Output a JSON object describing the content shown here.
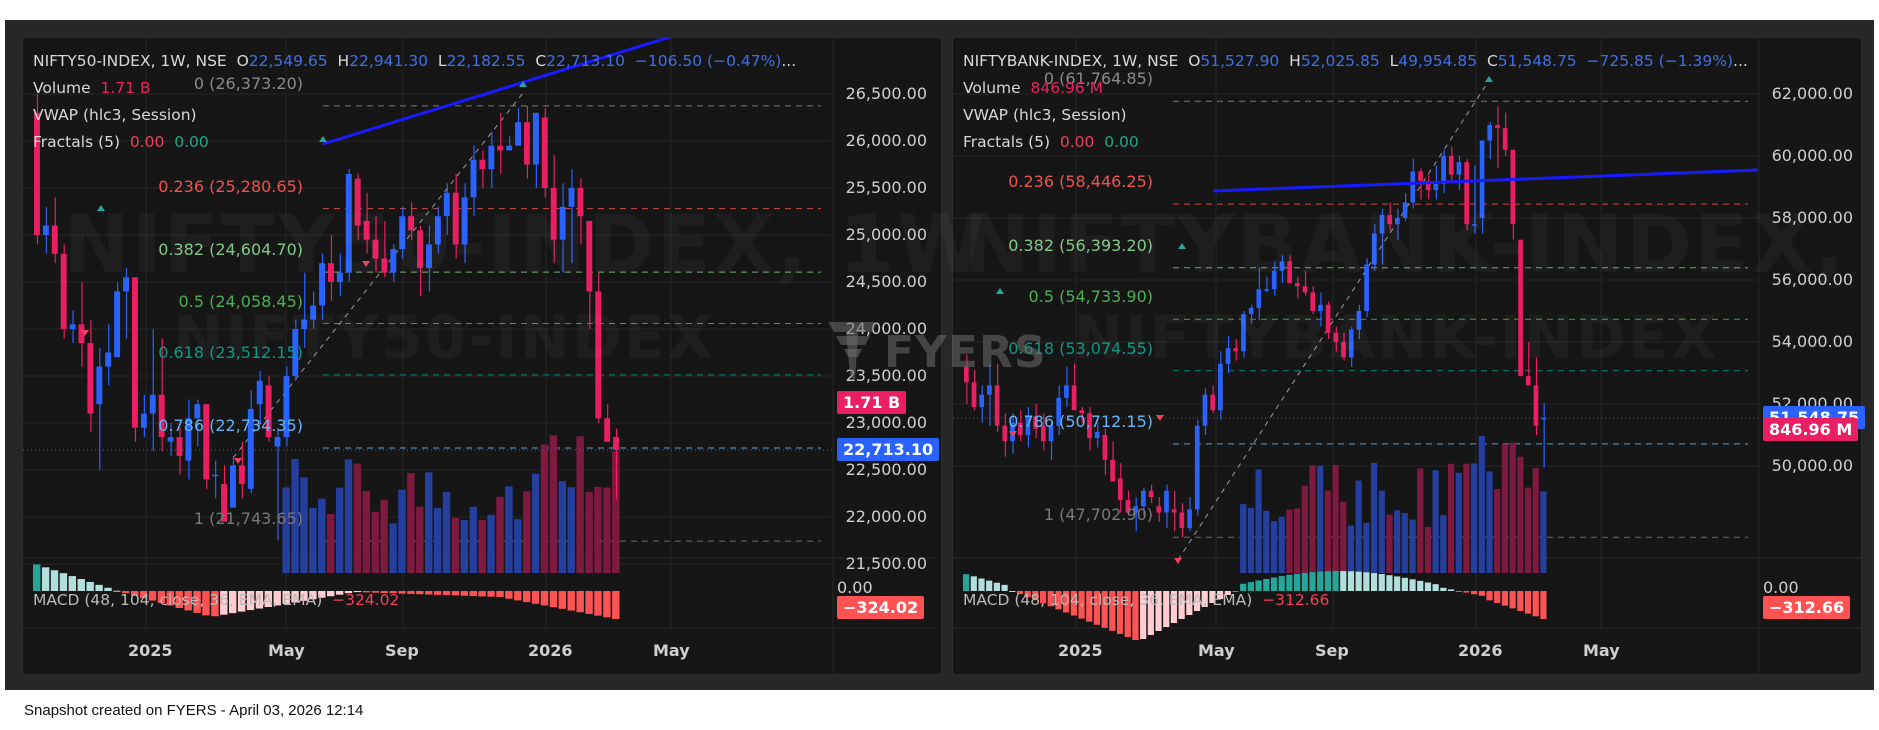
{
  "caption": "Snapshot created on FYERS - April 03, 2026 12:14",
  "watermark_logo": "FYERS",
  "colors": {
    "up": "#2962ff",
    "down": "#e91e63",
    "vol_up": "#243f9e",
    "vol_down": "#7e1940",
    "trend_line": "#1a1aff",
    "macd_pos_strong": "#26a69a",
    "macd_pos_weak": "#b2dfdb",
    "macd_neg_strong": "#ff5252",
    "macd_neg_weak": "#ffcdd2",
    "badge_price": "#2962ff",
    "badge_volume": "#e91e63",
    "badge_macd": "#ff5252"
  },
  "charts": [
    {
      "symbol": "NIFTY50-INDEX, 1W, NSE",
      "ohlc": {
        "o_label": "O",
        "o": "22,549.65",
        "h_label": "H",
        "h": "22,941.30",
        "l_label": "L",
        "l": "22,182.55",
        "c_label": "C",
        "c": "22,713.10",
        "change": "−106.50 (−0.47%)",
        "ellipsis": "..."
      },
      "volume_label": "Volume",
      "volume_value": "1.71 B",
      "vwap_label": "VWAP (hlc3, Session)",
      "fractals_label": "Fractals (5)",
      "fractals_v1": "0.00",
      "fractals_v2": "0.00",
      "macd_label": "MACD (48, 104, close, 36, EMA, EMA)",
      "macd_value": "−324.02",
      "watermark": "NIFTY50-INDEX, 1W",
      "watermark2": "NIFTY50-INDEX",
      "price_badge": "22,713.10",
      "volume_badge": "1.71 B",
      "macd_badge": "−324.02",
      "macd_zero": "0.00",
      "price_axis": [
        "26,500.00",
        "26,000.00",
        "25,500.00",
        "25,000.00",
        "24,500.00",
        "24,000.00",
        "23,500.00",
        "23,000.00",
        "22,500.00",
        "22,000.00",
        "21,500.00"
      ],
      "time_axis": [
        "2025",
        "May",
        "Sep",
        "2026",
        "May"
      ],
      "fib_levels": [
        {
          "label": "0 (26,373.20)",
          "ratio": "0",
          "price": 26373.2,
          "color": "#8a8a8a"
        },
        {
          "label": "0.236 (25,280.65)",
          "ratio": "0.236",
          "price": 25280.65,
          "color": "#f0524f"
        },
        {
          "label": "0.382 (24,604.70)",
          "ratio": "0.382",
          "price": 24604.7,
          "color": "#81c784"
        },
        {
          "label": "0.5 (24,058.45)",
          "ratio": "0.5",
          "price": 24058.45,
          "color": "#4caf50"
        },
        {
          "label": "0.618 (23,512.15)",
          "ratio": "0.618",
          "price": 23512.15,
          "color": "#089981"
        },
        {
          "label": "0.786 (22,734.35)",
          "ratio": "0.786",
          "price": 22734.35,
          "color": "#64b5f6"
        },
        {
          "label": "1 (21,743.65)",
          "ratio": "1",
          "price": 21743.65,
          "color": "#787878"
        }
      ]
    },
    {
      "symbol": "NIFTYBANK-INDEX, 1W, NSE",
      "ohlc": {
        "o_label": "O",
        "o": "51,527.90",
        "h_label": "H",
        "h": "52,025.85",
        "l_label": "L",
        "l": "49,954.85",
        "c_label": "C",
        "c": "51,548.75",
        "change": "−725.85 (−1.39%)",
        "ellipsis": "..."
      },
      "volume_label": "Volume",
      "volume_value": "846.96 M",
      "vwap_label": "VWAP (hlc3, Session)",
      "fractals_label": "Fractals (5)",
      "fractals_v1": "0.00",
      "fractals_v2": "0.00",
      "macd_label": "MACD (48, 104, close, 36, EMA, EMA)",
      "macd_value": "−312.66",
      "watermark": "NIFTYBANK-INDEX, 1W",
      "watermark2": "NIFTYBANK-INDEX",
      "price_badge": "51,548.75",
      "volume_badge": "846.96 M",
      "macd_badge": "−312.66",
      "macd_zero": "0.00",
      "price_axis": [
        "62,000.00",
        "60,000.00",
        "58,000.00",
        "56,000.00",
        "54,000.00",
        "52,000.00",
        "50,000.00"
      ],
      "time_axis": [
        "2025",
        "May",
        "Sep",
        "2026",
        "May"
      ],
      "fib_levels": [
        {
          "label": "0 (61,764.85)",
          "ratio": "0",
          "price": 61764.85,
          "color": "#8a8a8a"
        },
        {
          "label": "0.236 (58,446.25)",
          "ratio": "0.236",
          "price": 58446.25,
          "color": "#f0524f"
        },
        {
          "label": "0.382 (56,393.20)",
          "ratio": "0.382",
          "price": 56393.2,
          "color": "#81c784"
        },
        {
          "label": "0.5 (54,733.90)",
          "ratio": "0.5",
          "price": 54733.9,
          "color": "#4caf50"
        },
        {
          "label": "0.618 (53,074.55)",
          "ratio": "0.618",
          "price": 53074.55,
          "color": "#089981"
        },
        {
          "label": "0.786 (50,712.15)",
          "ratio": "0.786",
          "price": 50712.15,
          "color": "#64b5f6"
        },
        {
          "label": "1 (47,702.90)",
          "ratio": "1",
          "price": 47702.9,
          "color": "#787878"
        }
      ]
    }
  ],
  "chart_data": [
    {
      "type": "candlestick",
      "title": "NIFTY50-INDEX, 1W, NSE",
      "xlabel": "",
      "ylabel": "",
      "x_ticks": [
        "2025",
        "May",
        "Sep",
        "2026",
        "May"
      ],
      "ylim": [
        21300,
        26700
      ],
      "grid": true,
      "last": {
        "open": 22549.65,
        "high": 22941.3,
        "low": 22182.55,
        "close": 22713.1,
        "change": -106.5,
        "change_pct": -0.47
      },
      "fibonacci": [
        [
          0,
          26373.2
        ],
        [
          0.236,
          25280.65
        ],
        [
          0.382,
          24604.7
        ],
        [
          0.5,
          24058.45
        ],
        [
          0.618,
          23512.15
        ],
        [
          0.786,
          22734.35
        ],
        [
          1,
          21743.65
        ]
      ],
      "candles": [
        [
          26300,
          26500,
          24900,
          25000
        ],
        [
          25000,
          25300,
          24800,
          25100
        ],
        [
          25100,
          25400,
          24700,
          24800
        ],
        [
          24800,
          24900,
          23900,
          24000
        ],
        [
          24000,
          24200,
          23850,
          24050
        ],
        [
          24050,
          24500,
          23600,
          23850
        ],
        [
          23850,
          24100,
          22900,
          23100
        ],
        [
          23200,
          23800,
          22500,
          23600
        ],
        [
          23600,
          24050,
          23400,
          23750
        ],
        [
          23700,
          24500,
          23800,
          24400
        ],
        [
          24400,
          24650,
          23900,
          24550
        ],
        [
          24550,
          24500,
          22800,
          22950
        ],
        [
          22950,
          23300,
          22850,
          23100
        ],
        [
          23100,
          24000,
          22700,
          23300
        ],
        [
          23300,
          23900,
          22700,
          22850
        ],
        [
          22800,
          23000,
          22650,
          22850
        ],
        [
          22850,
          22950,
          22450,
          22650
        ],
        [
          22600,
          23250,
          22400,
          23050
        ],
        [
          23050,
          23250,
          22750,
          23200
        ],
        [
          23200,
          23200,
          22300,
          22400
        ],
        [
          22450,
          22600,
          22200,
          22450
        ],
        [
          22350,
          22550,
          21950,
          21950
        ],
        [
          22100,
          22650,
          22100,
          22550
        ],
        [
          22550,
          22800,
          22200,
          22350
        ],
        [
          22300,
          23350,
          22250,
          23150
        ],
        [
          23200,
          23550,
          23000,
          23450
        ],
        [
          23400,
          23500,
          22800,
          22850
        ],
        [
          22750,
          22950,
          21750,
          22850
        ],
        [
          22850,
          23600,
          22750,
          23500
        ],
        [
          23500,
          24100,
          23450,
          24000
        ],
        [
          24000,
          24600,
          23800,
          24100
        ],
        [
          24100,
          24400,
          24000,
          24250
        ],
        [
          24250,
          24800,
          24100,
          24700
        ],
        [
          24700,
          25000,
          24300,
          24500
        ],
        [
          24500,
          24800,
          24350,
          24600
        ],
        [
          24600,
          25700,
          24500,
          25650
        ],
        [
          25600,
          25650,
          24950,
          25100
        ],
        [
          25150,
          25450,
          24800,
          24950
        ],
        [
          24950,
          25200,
          24600,
          24750
        ],
        [
          24750,
          25150,
          24550,
          24600
        ],
        [
          24600,
          24900,
          24500,
          24850
        ],
        [
          24850,
          25300,
          24750,
          25200
        ],
        [
          25200,
          25350,
          24950,
          25050
        ],
        [
          25050,
          25100,
          24350,
          24650
        ],
        [
          24650,
          25100,
          24400,
          24900
        ],
        [
          24900,
          25300,
          24800,
          25200
        ],
        [
          25200,
          25550,
          25000,
          25450
        ],
        [
          25450,
          25650,
          24750,
          24900
        ],
        [
          24900,
          25550,
          24700,
          25400
        ],
        [
          25400,
          25950,
          25200,
          25800
        ],
        [
          25800,
          25900,
          25500,
          25700
        ],
        [
          25700,
          26100,
          25500,
          25950
        ],
        [
          25950,
          26300,
          25650,
          25900
        ],
        [
          25900,
          26050,
          25900,
          25950
        ],
        [
          25950,
          26350,
          26150,
          26200
        ],
        [
          26200,
          26373,
          25600,
          25750
        ],
        [
          25750,
          26300,
          25500,
          26300
        ],
        [
          26250,
          26350,
          25400,
          25500
        ],
        [
          25500,
          25850,
          24700,
          24950
        ],
        [
          24950,
          25550,
          24600,
          25300
        ],
        [
          25300,
          25700,
          24700,
          25500
        ],
        [
          25500,
          25600,
          24900,
          25200
        ],
        [
          25150,
          24900,
          24000,
          24400
        ],
        [
          24400,
          24600,
          23000,
          23050
        ],
        [
          23050,
          23200,
          22800,
          22800
        ],
        [
          22850,
          22941,
          22182,
          22713
        ]
      ],
      "volume_bars": "approx. 38 weekly bars, 0.9–1.8 B range, last 1.71 B",
      "macd_histogram_last": -324.02
    },
    {
      "type": "candlestick",
      "title": "NIFTYBANK-INDEX, 1W, NSE",
      "xlabel": "",
      "ylabel": "",
      "x_ticks": [
        "2025",
        "May",
        "Sep",
        "2026",
        "May"
      ],
      "ylim": [
        47000,
        62600
      ],
      "grid": true,
      "last": {
        "open": 51527.9,
        "high": 52025.85,
        "low": 49954.85,
        "close": 51548.75,
        "change": -725.85,
        "change_pct": -1.39
      },
      "fibonacci": [
        [
          0,
          61764.85
        ],
        [
          0.236,
          58446.25
        ],
        [
          0.382,
          56393.2
        ],
        [
          0.5,
          54733.9
        ],
        [
          0.618,
          53074.55
        ],
        [
          0.786,
          50712.15
        ],
        [
          1,
          47702.9
        ]
      ],
      "candles": [
        [
          53200,
          53600,
          52000,
          52700
        ],
        [
          52700,
          53100,
          51800,
          51900
        ],
        [
          51900,
          52600,
          51400,
          52300
        ],
        [
          52300,
          53300,
          51300,
          52600
        ],
        [
          52600,
          53300,
          51100,
          51300
        ],
        [
          51300,
          51700,
          50300,
          50800
        ],
        [
          50800,
          51700,
          50400,
          51400
        ],
        [
          51400,
          51800,
          50800,
          51000
        ],
        [
          51000,
          51900,
          50600,
          51600
        ],
        [
          51600,
          52000,
          50900,
          51200
        ],
        [
          51300,
          51700,
          50500,
          50800
        ],
        [
          50800,
          51500,
          50200,
          51300
        ],
        [
          51300,
          52600,
          51000,
          52200
        ],
        [
          52200,
          53200,
          51900,
          52600
        ],
        [
          52600,
          53300,
          51800,
          51800
        ],
        [
          51800,
          51900,
          51400,
          51700
        ],
        [
          51700,
          51900,
          50500,
          50900
        ],
        [
          50900,
          51400,
          50600,
          51100
        ],
        [
          51000,
          51200,
          49700,
          50200
        ],
        [
          50200,
          50800,
          49500,
          49500
        ],
        [
          49600,
          50100,
          48500,
          48900
        ],
        [
          48900,
          49200,
          48400,
          48500
        ],
        [
          48500,
          49000,
          47900,
          48700
        ],
        [
          48700,
          49300,
          48400,
          49200
        ],
        [
          49200,
          49400,
          48800,
          49000
        ],
        [
          48700,
          49000,
          48200,
          48500
        ],
        [
          48500,
          49400,
          48000,
          49200
        ],
        [
          48600,
          49200,
          47900,
          48500
        ],
        [
          48500,
          48800,
          47702,
          48000
        ],
        [
          48000,
          49000,
          47900,
          48600
        ],
        [
          48600,
          51500,
          48400,
          51300
        ],
        [
          51300,
          52500,
          51000,
          52300
        ],
        [
          52300,
          52600,
          51700,
          51800
        ],
        [
          51800,
          53700,
          51500,
          53300
        ],
        [
          53300,
          54200,
          53000,
          53800
        ],
        [
          53800,
          54100,
          53400,
          53700
        ],
        [
          53700,
          55000,
          53500,
          54900
        ],
        [
          54900,
          55200,
          54600,
          55100
        ],
        [
          55100,
          56400,
          54700,
          55700
        ],
        [
          55700,
          56100,
          55600,
          55700
        ],
        [
          55700,
          56600,
          55500,
          56300
        ],
        [
          56300,
          56800,
          55900,
          56600
        ],
        [
          56600,
          56800,
          55900,
          55900
        ],
        [
          55900,
          56100,
          55400,
          55800
        ],
        [
          55800,
          56300,
          55500,
          55600
        ],
        [
          55600,
          55800,
          54900,
          55000
        ],
        [
          55000,
          55600,
          54500,
          55200
        ],
        [
          55200,
          55300,
          54100,
          54300
        ],
        [
          54300,
          54500,
          53700,
          54000
        ],
        [
          54000,
          54300,
          53400,
          53500
        ],
        [
          53500,
          54500,
          53200,
          54400
        ],
        [
          54400,
          55200,
          54100,
          55000
        ],
        [
          55000,
          56700,
          54800,
          56500
        ],
        [
          56500,
          57800,
          56300,
          57500
        ],
        [
          57500,
          58300,
          56500,
          58100
        ],
        [
          58100,
          58500,
          57600,
          57800
        ],
        [
          57800,
          58300,
          57300,
          58000
        ],
        [
          58000,
          58800,
          57900,
          58500
        ],
        [
          58500,
          59900,
          58300,
          59500
        ],
        [
          59500,
          59600,
          58600,
          59200
        ],
        [
          59200,
          59400,
          58600,
          58900
        ],
        [
          58900,
          59700,
          58600,
          59100
        ],
        [
          59100,
          60200,
          58800,
          60000
        ],
        [
          60000,
          60300,
          59200,
          59400
        ],
        [
          59400,
          60000,
          58900,
          59800
        ],
        [
          59800,
          59900,
          57600,
          57800
        ],
        [
          57800,
          59700,
          57500,
          57800
        ],
        [
          58000,
          60400,
          57500,
          60500
        ],
        [
          60500,
          61100,
          59900,
          61000
        ],
        [
          61000,
          61600,
          59600,
          60900
        ],
        [
          60900,
          61400,
          60000,
          60200
        ],
        [
          60200,
          59700,
          57300,
          57800
        ],
        [
          57300,
          57000,
          52900,
          52900
        ],
        [
          52900,
          54000,
          52600,
          52600
        ],
        [
          52600,
          53500,
          51000,
          51300
        ],
        [
          51528,
          52026,
          49955,
          51549
        ]
      ],
      "volume_bars": "approx. 40 weekly bars, last 846.96 M",
      "macd_histogram_last": -312.66
    }
  ]
}
